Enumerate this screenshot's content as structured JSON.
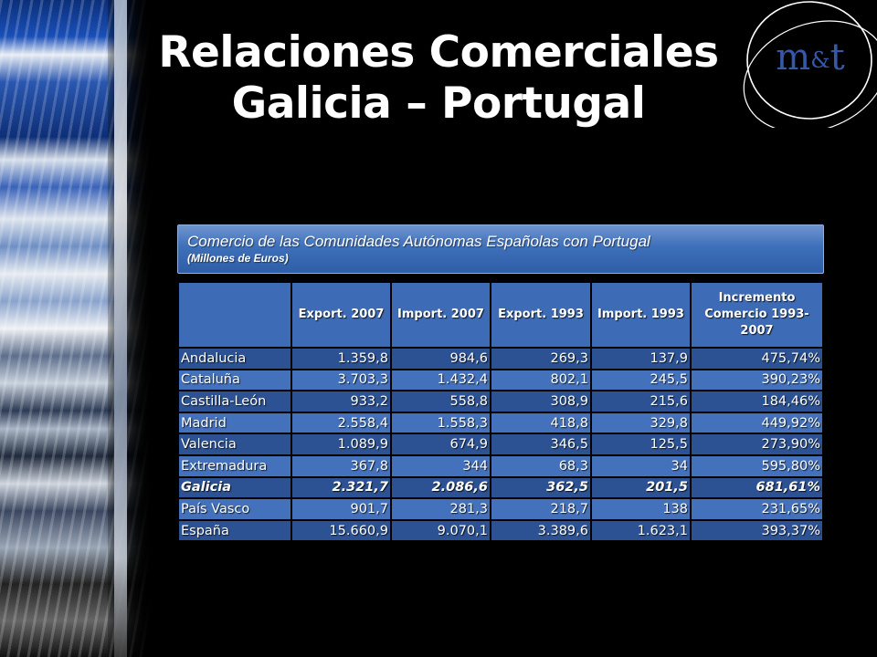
{
  "title": {
    "line1": "Relaciones Comerciales",
    "line2": "Galicia – Portugal"
  },
  "logo": {
    "text_m": "m",
    "text_amp": "&",
    "text_t": "t"
  },
  "banner": {
    "title": "Comercio de las Comunidades Autónomas Españolas con Portugal",
    "subtitle": "(Millones de Euros)"
  },
  "colors": {
    "header_bg": "#3e6bb5",
    "row_dark": "#2c5293",
    "row_light": "#4471bb",
    "logo_blue": "#3558a8"
  },
  "table": {
    "headers": [
      "",
      "Export. 2007",
      "Import. 2007",
      "Export. 1993",
      "Import. 1993",
      "Incremento Comercio 1993-2007"
    ],
    "rows": [
      {
        "region": "Andalucia",
        "exp2007": "1.359,8",
        "imp2007": "984,6",
        "exp1993": "269,3",
        "imp1993": "137,9",
        "incr": "475,74%"
      },
      {
        "region": "Cataluña",
        "exp2007": "3.703,3",
        "imp2007": "1.432,4",
        "exp1993": "802,1",
        "imp1993": "245,5",
        "incr": "390,23%"
      },
      {
        "region": "Castilla-León",
        "exp2007": "933,2",
        "imp2007": "558,8",
        "exp1993": "308,9",
        "imp1993": "215,6",
        "incr": "184,46%"
      },
      {
        "region": "Madrid",
        "exp2007": "2.558,4",
        "imp2007": "1.558,3",
        "exp1993": "418,8",
        "imp1993": "329,8",
        "incr": "449,92%"
      },
      {
        "region": "Valencia",
        "exp2007": "1.089,9",
        "imp2007": "674,9",
        "exp1993": "346,5",
        "imp1993": "125,5",
        "incr": "273,90%"
      },
      {
        "region": "Extremadura",
        "exp2007": "367,8",
        "imp2007": "344",
        "exp1993": "68,3",
        "imp1993": "34",
        "incr": "595,80%"
      },
      {
        "region": "Galicia",
        "exp2007": "2.321,7",
        "imp2007": "2.086,6",
        "exp1993": "362,5",
        "imp1993": "201,5",
        "incr": "681,61%"
      },
      {
        "region": "País Vasco",
        "exp2007": "901,7",
        "imp2007": "281,3",
        "exp1993": "218,7",
        "imp1993": "138",
        "incr": "231,65%"
      },
      {
        "region": "España",
        "exp2007": "15.660,9",
        "imp2007": "9.070,1",
        "exp1993": "3.389,6",
        "imp1993": "1.623,1",
        "incr": "393,37%"
      }
    ]
  }
}
